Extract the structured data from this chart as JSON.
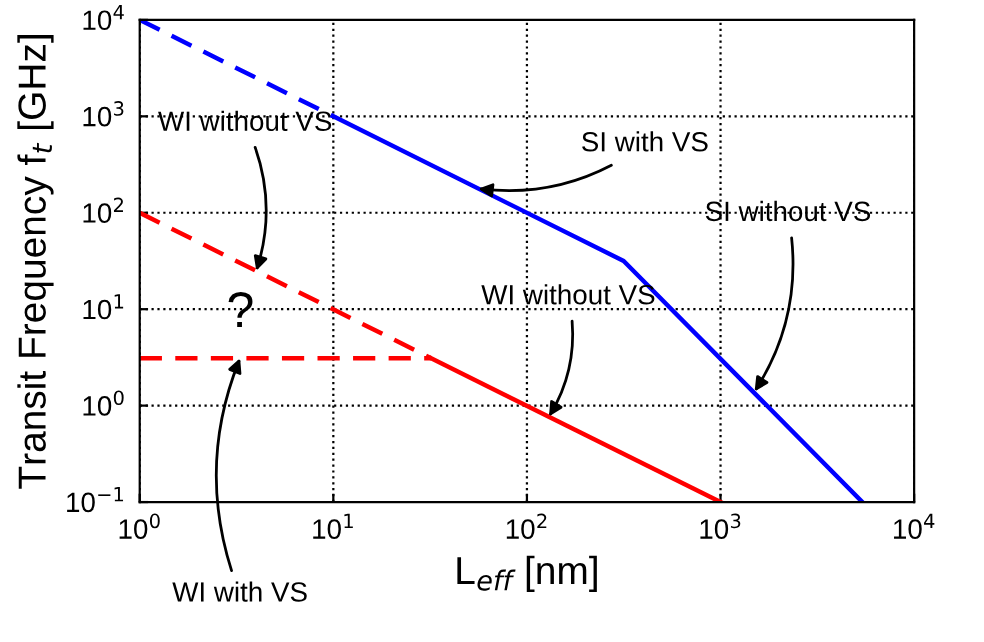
{
  "chart_data": {
    "type": "line",
    "xlabel": "L$_{eff}$ [nm]",
    "ylabel": "Transit Frequency f$_{t}$ [GHz]",
    "log": "xy",
    "grid": true,
    "legend": false,
    "marker": "none",
    "xlim": [
      1,
      10000
    ],
    "ylim": [
      0.1,
      10000
    ],
    "xticks": [
      {
        "value": 1,
        "label": "10$^{0}$"
      },
      {
        "value": 10,
        "label": "10$^{1}$"
      },
      {
        "value": 100,
        "label": "10$^{2}$"
      },
      {
        "value": 1000,
        "label": "10$^{3}$"
      },
      {
        "value": 10000,
        "label": "10$^{4}$"
      }
    ],
    "yticks": [
      {
        "value": 0.1,
        "label": "10$^{−1}$"
      },
      {
        "value": 1,
        "label": "10$^{0}$"
      },
      {
        "value": 10,
        "label": "10$^{1}$"
      },
      {
        "value": 100,
        "label": "10$^{2}$"
      },
      {
        "value": 1000,
        "label": "10$^{3}$"
      },
      {
        "value": 10000,
        "label": "10$^{4}$"
      }
    ],
    "series": [
      {
        "color": "#0000ff",
        "line_style": "dashed",
        "x": [
          1,
          10
        ],
        "values": [
          10000,
          1000
        ]
      },
      {
        "color": "#0000ff",
        "line_style": "solid",
        "x": [
          10,
          316,
          5400
        ],
        "values": [
          1000,
          31.6,
          0.1
        ]
      },
      {
        "color": "#ff0000",
        "line_style": "dashed",
        "x": [
          1,
          32
        ],
        "values": [
          100,
          3.1
        ]
      },
      {
        "color": "#ff0000",
        "line_style": "dashed",
        "x": [
          1,
          32
        ],
        "values": [
          3.1,
          3.1
        ]
      },
      {
        "color": "#ff0000",
        "line_style": "solid",
        "x": [
          32,
          1000
        ],
        "values": [
          3.1,
          0.1
        ]
      }
    ],
    "annotations": [
      {
        "text": "SI with VS",
        "x": 56,
        "y": 178
      },
      {
        "text": "SI without VS",
        "x": 1500,
        "y": 1.4
      },
      {
        "text": "WI without VS",
        "x": 4,
        "y": 25
      },
      {
        "text": "WI without VS",
        "x": 130,
        "y": 0.77
      },
      {
        "text": "WI with VS",
        "x": 3.3,
        "y": 3.1
      },
      "?"
    ]
  }
}
